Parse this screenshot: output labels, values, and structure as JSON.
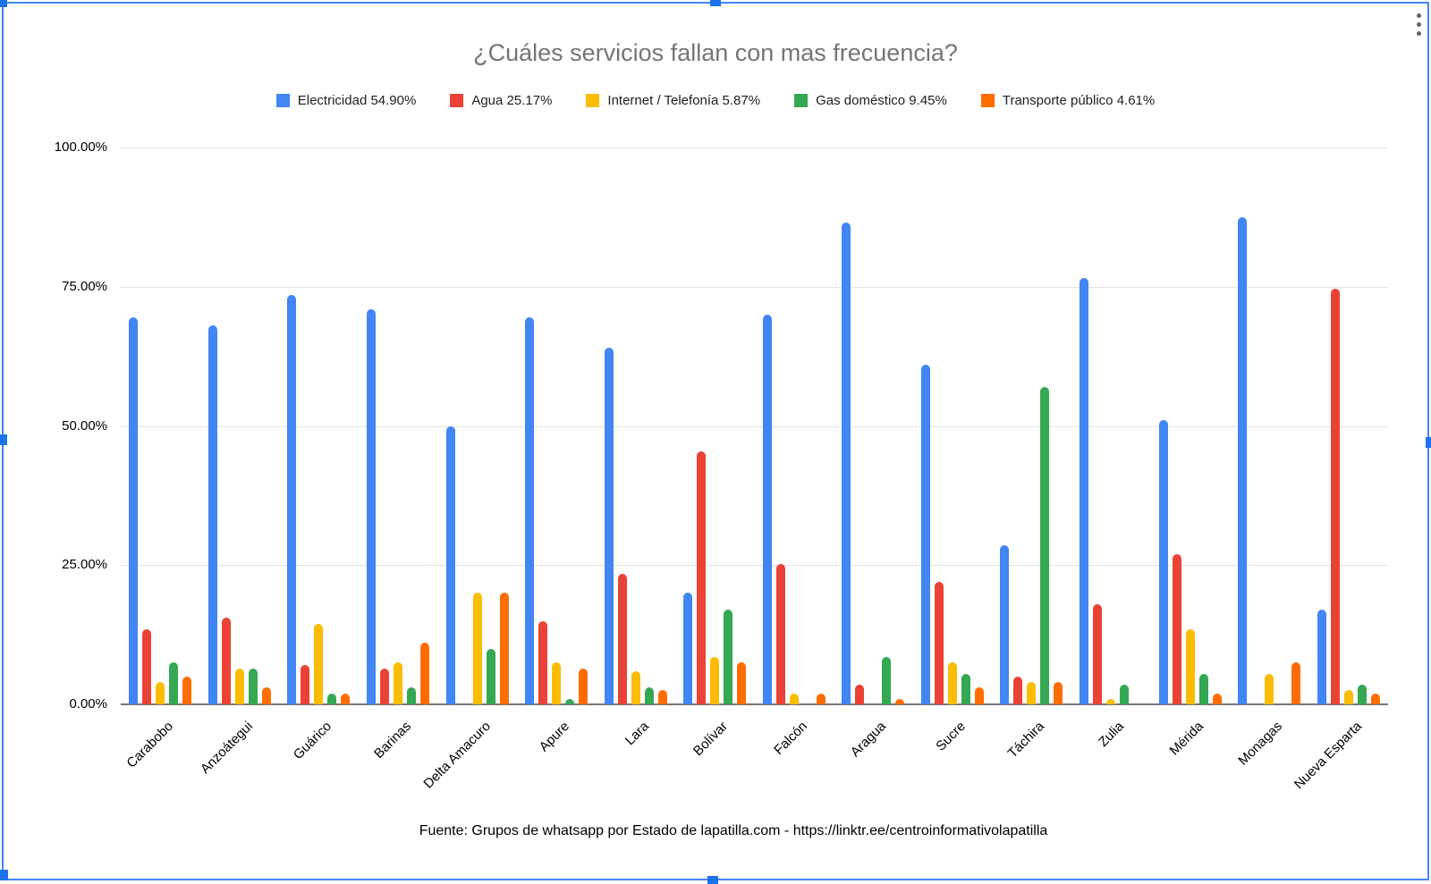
{
  "chart_data": {
    "type": "bar",
    "title": "¿Cuáles servicios fallan con mas frecuencia?",
    "source": "Fuente: Grupos de whatsapp por Estado de lapatilla.com -  https://linktr.ee/centroinformativolapatilla",
    "legend_position": "top",
    "categories": [
      "Carabobo",
      "Anzoátegui",
      "Guárico",
      "Barinas",
      "Delta Amacuro",
      "Apure",
      "Lara",
      "Bolívar",
      "Falcón",
      "Aragua",
      "Sucre",
      "Táchira",
      "Zulia",
      "Mérida",
      "Monagas",
      "Nueva Esparta"
    ],
    "series": [
      {
        "name": "Electricidad 54.90%",
        "color": "#4285F4",
        "values": [
          69.5,
          68,
          73.5,
          71,
          50,
          69.5,
          64,
          20,
          70,
          86.5,
          61,
          28.5,
          76.5,
          51,
          87.5,
          17
        ]
      },
      {
        "name": "Agua 25.17%",
        "color": "#EA4335",
        "values": [
          13.5,
          15.5,
          7,
          6.5,
          0,
          15,
          23.5,
          45.5,
          25.2,
          3.5,
          22,
          5,
          18,
          27,
          0,
          74.7
        ]
      },
      {
        "name": "Internet / Telefonía 5.87%",
        "color": "#FBBC04",
        "values": [
          4,
          6.5,
          14.5,
          7.5,
          20,
          7.5,
          6,
          8.5,
          2,
          0,
          7.5,
          4,
          1,
          13.5,
          5.5,
          2.5
        ]
      },
      {
        "name": "Gas doméstico 9.45%",
        "color": "#34A853",
        "values": [
          7.5,
          6.5,
          2,
          3,
          10,
          1,
          3,
          17,
          0,
          8.5,
          5.5,
          57,
          3.5,
          5.5,
          0,
          3.5
        ]
      },
      {
        "name": "Transporte público 4.61%",
        "color": "#FF6D01",
        "values": [
          5,
          3,
          2,
          11,
          20,
          6.5,
          2.5,
          7.5,
          2,
          1,
          3,
          4,
          0,
          2,
          7.5,
          2
        ]
      }
    ],
    "y_axis": {
      "ticks": [
        "100.00%",
        "75.00%",
        "50.00%",
        "25.00%",
        "0.00%"
      ],
      "min": 0,
      "max": 100,
      "grid": true
    },
    "x_axis": {
      "label_rotation_deg": -45
    }
  },
  "selection": {
    "border_color": "#4285f4",
    "handle_color": "#1a73e8"
  },
  "icons": {
    "chart_menu": "kebab-menu-icon"
  }
}
